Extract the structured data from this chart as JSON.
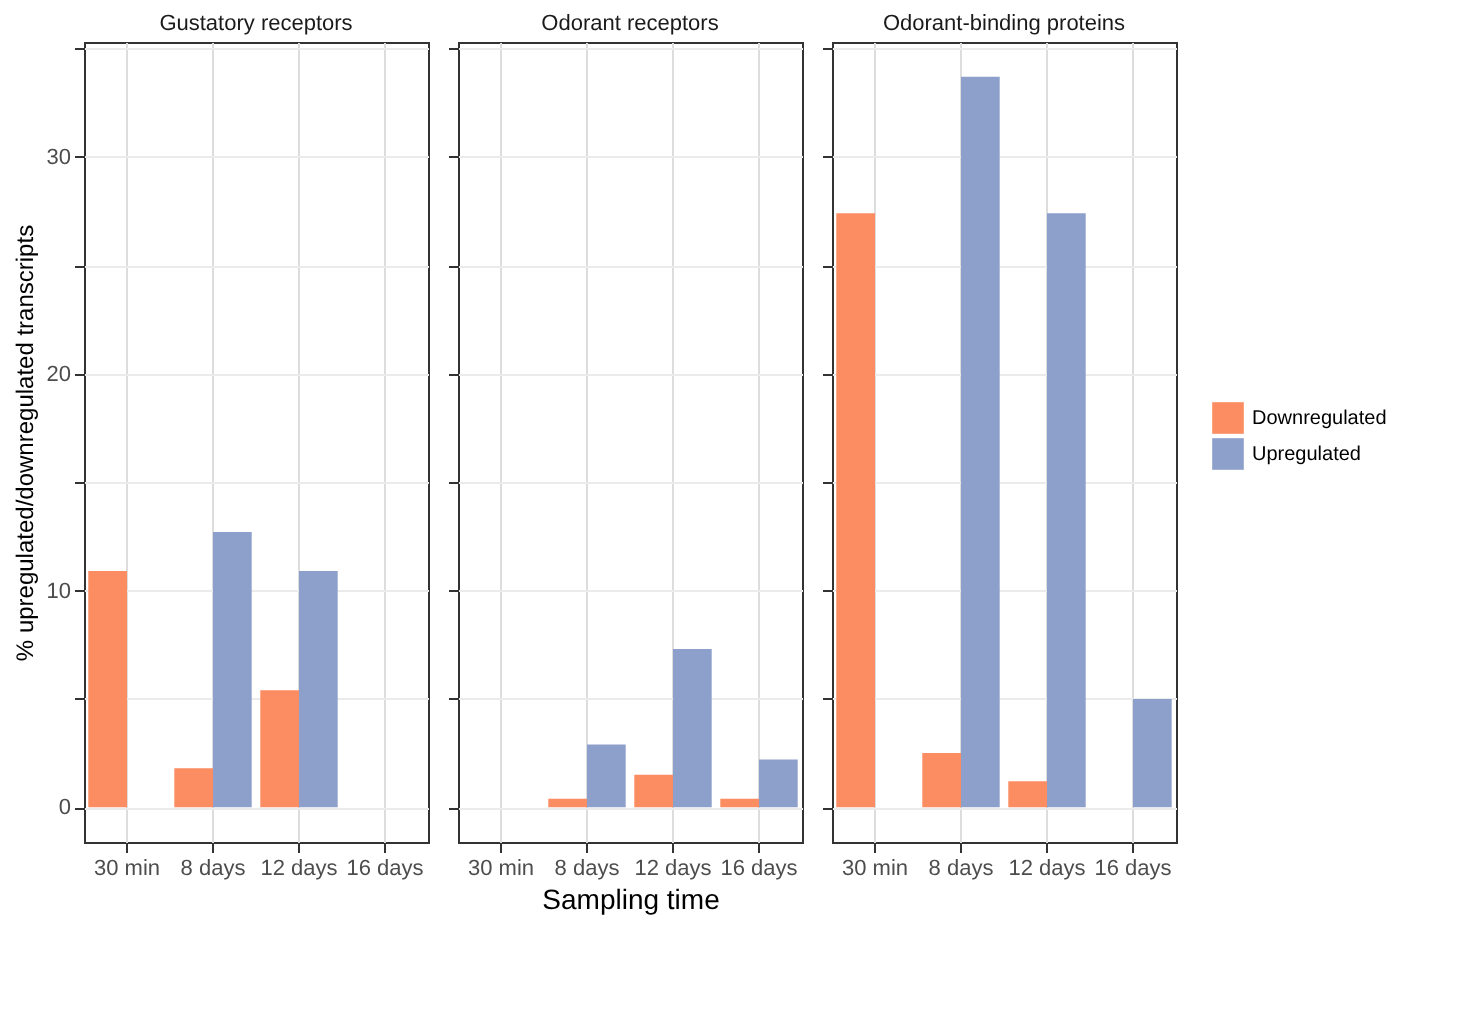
{
  "chart_data": [
    {
      "type": "bar",
      "title": "Gustatory  receptors",
      "ylabel": "% upregulated/downregulated transcripts",
      "categories": [
        "30 min",
        "8 days",
        "12 days",
        "16 days"
      ],
      "ylim": [
        -1.6,
        35.3
      ],
      "yticks": [
        0,
        {
          "value": 5,
          "label": null
        },
        10,
        {
          "value": 15,
          "label": null
        },
        20,
        {
          "value": 25,
          "label": null
        },
        30,
        {
          "value": 35,
          "label": null
        }
      ],
      "grid": true,
      "series": [
        {
          "color": "#fc8d62",
          "values": [
            10.9,
            1.8,
            5.4,
            null
          ]
        },
        {
          "color": "#8da0cb",
          "values": [
            null,
            12.7,
            10.9,
            null
          ]
        }
      ]
    },
    {
      "type": "bar",
      "title": "Odorant  receptors",
      "xlabel": "Sampling time",
      "categories": [
        "30 min",
        "8 days",
        "12 days",
        "16 days"
      ],
      "ylim": [
        -1.6,
        35.3
      ],
      "yticks": [
        0,
        {
          "value": 5,
          "label": null
        },
        10,
        {
          "value": 15,
          "label": null
        },
        20,
        {
          "value": 25,
          "label": null
        },
        30,
        {
          "value": 35,
          "label": null
        }
      ],
      "tick_labels": "x",
      "grid": true,
      "series": [
        {
          "color": "#fc8d62",
          "values": [
            null,
            0.4,
            1.5,
            0.4
          ]
        },
        {
          "color": "#8da0cb",
          "values": [
            null,
            2.9,
            7.3,
            2.2
          ]
        }
      ]
    },
    {
      "type": "bar",
      "title": "Odorant-binding  proteins",
      "categories": [
        "30 min",
        "8 days",
        "12 days",
        "16 days"
      ],
      "ylim": [
        -1.6,
        35.3
      ],
      "yticks": [
        0,
        {
          "value": 5,
          "label": null
        },
        10,
        {
          "value": 15,
          "label": null
        },
        20,
        {
          "value": 25,
          "label": null
        },
        30,
        {
          "value": 35,
          "label": null
        }
      ],
      "tick_labels": "x",
      "grid": true,
      "legend": "right",
      "series": [
        {
          "name": "Downregulated",
          "color": "#fc8d62",
          "values": [
            27.4,
            2.5,
            1.2,
            null
          ]
        },
        {
          "name": "Upregulated",
          "color": "#8da0cb",
          "values": [
            null,
            33.7,
            27.4,
            5.0
          ]
        }
      ]
    }
  ]
}
